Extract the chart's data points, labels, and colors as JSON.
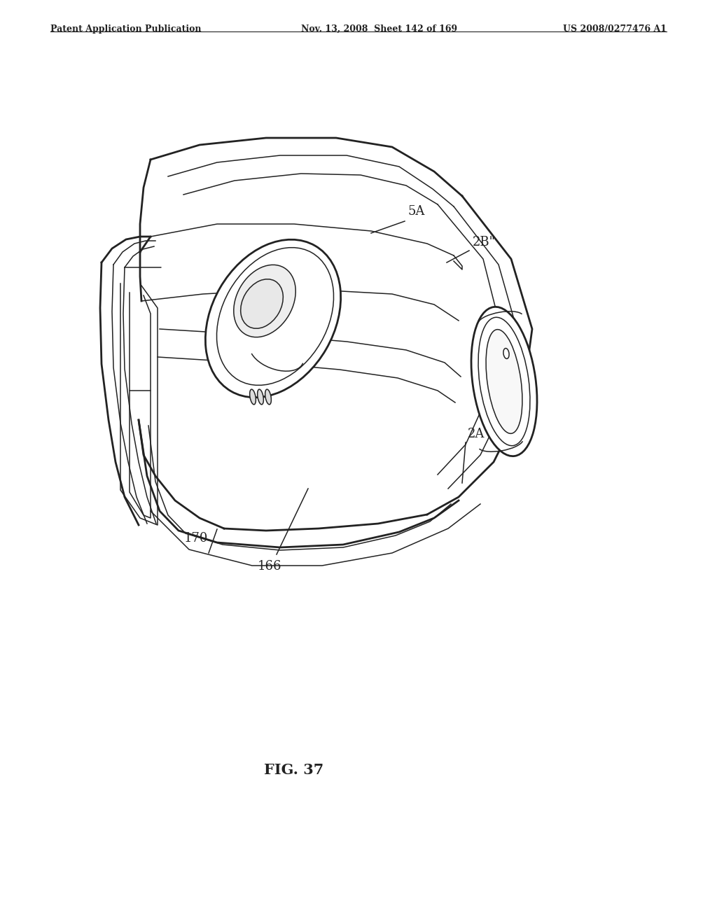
{
  "bg_color": "#ffffff",
  "line_color": "#222222",
  "lw": 1.6,
  "lw_thin": 1.1,
  "lw_thick": 2.0,
  "header_left": "Patent Application Publication",
  "header_mid": "Nov. 13, 2008  Sheet 142 of 169",
  "header_right": "US 2008/0277476 A1",
  "fig_label": "FIG. 37",
  "figsize": [
    10.24,
    13.2
  ],
  "dpi": 100
}
